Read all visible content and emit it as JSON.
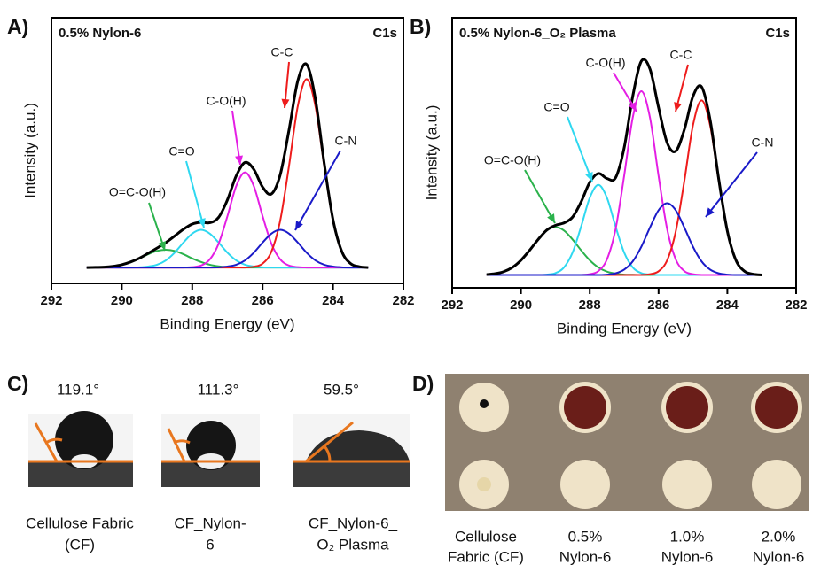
{
  "chart_data": [
    {
      "type": "line",
      "panel": "A)",
      "title": "0.5% Nylon-6",
      "note": "C1s",
      "xlabel": "Binding Energy (eV)",
      "ylabel": "Intensity (a.u.)",
      "xlim": [
        292,
        282
      ],
      "xticks": [
        292,
        290,
        288,
        286,
        284,
        282
      ],
      "ylim": [
        -8,
        126
      ],
      "x": [
        291,
        290.75,
        290.5,
        290.25,
        290,
        289.75,
        289.5,
        289.25,
        289,
        288.75,
        288.5,
        288.25,
        288,
        287.75,
        287.5,
        287.25,
        287,
        286.75,
        286.5,
        286.25,
        286,
        285.75,
        285.5,
        285.25,
        285,
        284.75,
        284.5,
        284.25,
        284,
        283.75,
        283.5,
        283.25,
        283
      ],
      "series": [
        {
          "name": "O=C-O(H)",
          "color": "#2bb24c",
          "values": [
            0,
            0.1,
            0.2,
            0.6,
            1.4,
            2.8,
            4.6,
            6.7,
            8.4,
            9,
            8.4,
            6.7,
            4.6,
            2.8,
            1.4,
            0.6,
            0.2,
            0.1,
            0,
            0,
            0,
            0,
            0,
            0,
            0,
            0,
            0,
            0,
            0,
            0,
            0,
            0,
            0
          ]
        },
        {
          "name": "C=O",
          "color": "#2fd8f0",
          "values": [
            0,
            0,
            0,
            0,
            0,
            0,
            0.1,
            0.5,
            1.4,
            3.6,
            7.5,
            12.6,
            17.1,
            19,
            17.1,
            12.6,
            7.5,
            3.6,
            1.4,
            0.5,
            0.1,
            0,
            0,
            0,
            0,
            0,
            0,
            0,
            0,
            0,
            0,
            0,
            0
          ]
        },
        {
          "name": "C-O(H)",
          "color": "#e41ee4",
          "values": [
            0,
            0,
            0,
            0,
            0,
            0,
            0,
            0,
            0,
            0,
            0,
            0,
            0.2,
            1.0,
            4.1,
            12.0,
            25.9,
            41.1,
            48,
            41.1,
            25.9,
            12.0,
            4.1,
            1.0,
            0.2,
            0,
            0,
            0,
            0,
            0,
            0,
            0,
            0
          ]
        },
        {
          "name": "C-C",
          "color": "#ee1c1c",
          "values": [
            0,
            0,
            0,
            0,
            0,
            0,
            0,
            0,
            0,
            0,
            0,
            0,
            0,
            0,
            0,
            0,
            0,
            0,
            0,
            0.4,
            2.0,
            8.0,
            23.7,
            51.2,
            81.4,
            95,
            81.4,
            51.2,
            23.7,
            8.0,
            2.0,
            0.4,
            0
          ]
        },
        {
          "name": "C-N",
          "color": "#1a1ac8",
          "values": [
            0,
            0,
            0,
            0,
            0,
            0,
            0,
            0,
            0,
            0,
            0,
            0,
            0,
            0,
            0,
            0.1,
            0.5,
            1.4,
            3.6,
            7.5,
            12.6,
            17.1,
            19,
            17.1,
            12.6,
            7.5,
            3.6,
            1.4,
            0.5,
            0.1,
            0,
            0,
            0
          ]
        },
        {
          "color": "#000000",
          "values": [
            0,
            0.1,
            0.2,
            0.6,
            1.4,
            2.8,
            4.7,
            7.2,
            9.8,
            12.6,
            15.9,
            19.3,
            21.9,
            22.8,
            22.6,
            25.3,
            34.1,
            46.2,
            53.0,
            49.5,
            40.6,
            37.1,
            46.8,
            69.3,
            94.2,
            102.5,
            85.0,
            52.6,
            24.2,
            8.1,
            2.0,
            0.4,
            0
          ]
        }
      ]
    },
    {
      "type": "line",
      "panel": "B)",
      "title": "0.5% Nylon-6_O₂ Plasma",
      "note": "C1s",
      "xlabel": "Binding Energy (eV)",
      "ylabel": "Intensity (a.u.)",
      "xlim": [
        292,
        282
      ],
      "xticks": [
        292,
        290,
        288,
        286,
        284,
        282
      ],
      "ylim": [
        -7,
        140
      ],
      "x": [
        291,
        290.75,
        290.5,
        290.25,
        290,
        289.75,
        289.5,
        289.25,
        289,
        288.75,
        288.5,
        288.25,
        288,
        287.75,
        287.5,
        287.25,
        287,
        286.75,
        286.5,
        286.25,
        286,
        285.75,
        285.5,
        285.25,
        285,
        284.75,
        284.5,
        284.25,
        284,
        283.75,
        283.5,
        283.25,
        283
      ],
      "series": [
        {
          "name": "O=C-O(H)",
          "color": "#2bb24c",
          "values": [
            0.2,
            0.7,
            1.8,
            4.1,
            8.0,
            13.4,
            19.3,
            24.2,
            26,
            24.2,
            19.3,
            13.4,
            8.0,
            4.1,
            1.8,
            0.7,
            0.2,
            0.1,
            0,
            0,
            0,
            0,
            0,
            0,
            0,
            0,
            0,
            0,
            0,
            0,
            0,
            0,
            0
          ]
        },
        {
          "name": "C=O",
          "color": "#2fd8f0",
          "values": [
            0,
            0,
            0,
            0,
            0,
            0,
            0,
            0.2,
            1.0,
            4.1,
            12.2,
            26.4,
            42.0,
            49,
            42.0,
            26.4,
            12.2,
            4.1,
            1.0,
            0.2,
            0,
            0,
            0,
            0,
            0,
            0,
            0,
            0,
            0,
            0,
            0,
            0,
            0
          ]
        },
        {
          "name": "C-O(H)",
          "color": "#e41ee4",
          "values": [
            0,
            0,
            0,
            0,
            0,
            0,
            0,
            0,
            0,
            0,
            0,
            0,
            0.4,
            2.1,
            8.5,
            24.9,
            53.9,
            85.7,
            100,
            85.7,
            53.9,
            24.9,
            8.5,
            2.1,
            0.4,
            0,
            0,
            0,
            0,
            0,
            0,
            0,
            0
          ]
        },
        {
          "name": "C-C",
          "color": "#ee1c1c",
          "values": [
            0,
            0,
            0,
            0,
            0,
            0,
            0,
            0,
            0,
            0,
            0,
            0,
            0,
            0,
            0,
            0,
            0,
            0,
            0,
            0.4,
            2.0,
            8.0,
            23.7,
            51.2,
            81.4,
            95,
            81.4,
            51.2,
            23.7,
            8.0,
            2.0,
            0.4,
            0
          ]
        },
        {
          "name": "C-N",
          "color": "#1a1ac8",
          "values": [
            0,
            0,
            0,
            0,
            0,
            0,
            0,
            0,
            0,
            0,
            0,
            0,
            0,
            0,
            0.2,
            0.9,
            2.9,
            7.4,
            15.4,
            25.8,
            35.2,
            39,
            35.2,
            25.8,
            15.4,
            7.4,
            2.9,
            0.9,
            0.2,
            0,
            0,
            0,
            0
          ]
        },
        {
          "color": "#000000",
          "values": [
            0.2,
            0.7,
            1.8,
            4.1,
            8.0,
            13.4,
            19.3,
            24.4,
            27.0,
            28.3,
            31.5,
            39.8,
            50.4,
            55.2,
            52.5,
            52.9,
            69.2,
            97.3,
            116.4,
            112.1,
            91.1,
            71.9,
            67.4,
            79.1,
            97.2,
            102.4,
            84.3,
            52.1,
            23.9,
            8.0,
            2.0,
            0.4,
            0
          ]
        }
      ]
    }
  ],
  "panels": [
    {
      "label": "C)",
      "samples": [
        {
          "angle": "119.1°",
          "caption": [
            "Cellulose Fabric",
            "(CF)"
          ]
        },
        {
          "angle": "111.3°",
          "caption": [
            "CF_Nylon-",
            "6"
          ]
        },
        {
          "angle": "59.5°",
          "caption": [
            "CF_Nylon-6_",
            "O₂ Plasma"
          ]
        }
      ]
    },
    {
      "label": "D)",
      "samples": [
        {
          "caption": [
            "Cellulose",
            "Fabric (CF)"
          ]
        },
        {
          "caption": [
            "0.5%",
            "Nylon-6"
          ]
        },
        {
          "caption": [
            "1.0%",
            "Nylon-6"
          ]
        },
        {
          "caption": [
            "2.0%",
            "Nylon-6"
          ]
        }
      ]
    }
  ]
}
